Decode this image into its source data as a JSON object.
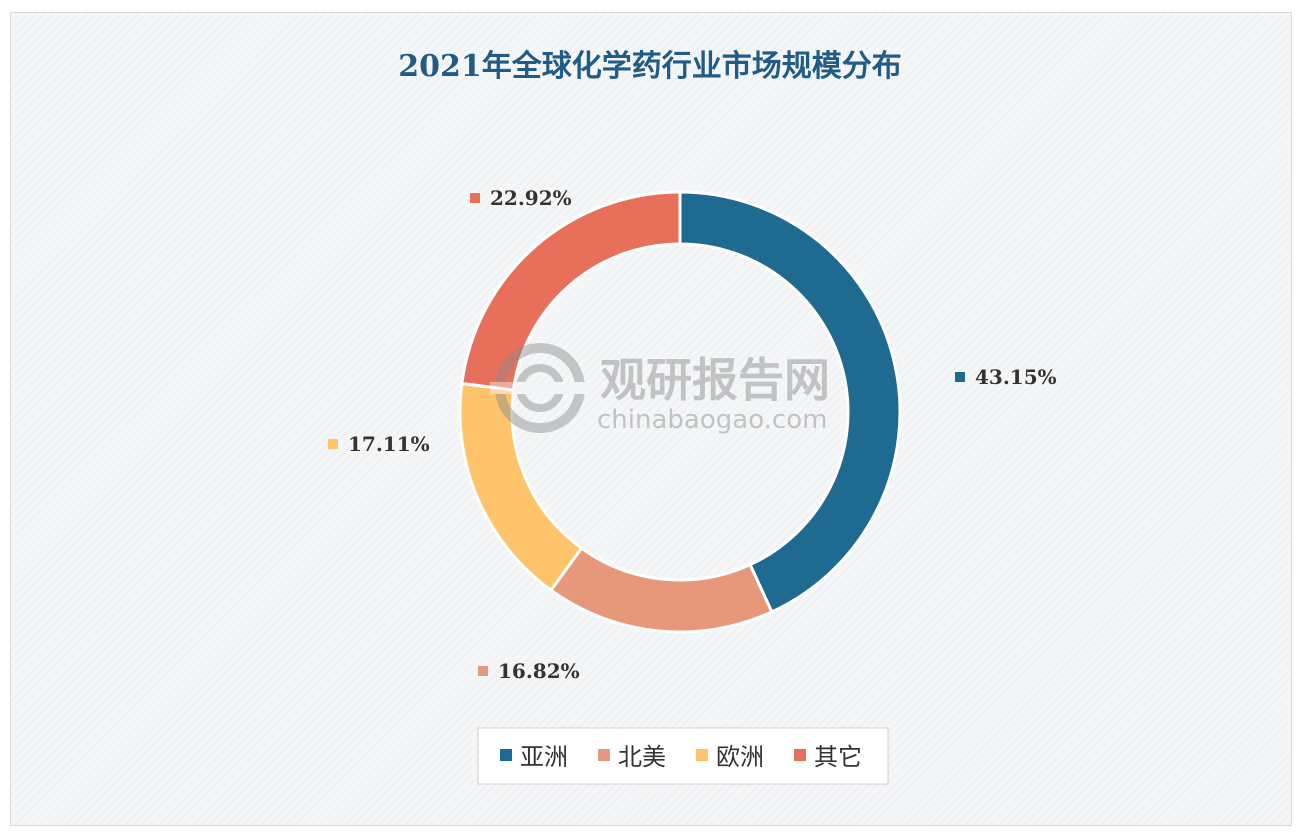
{
  "chart_data": {
    "type": "pie",
    "title": "2021年全球化学药行业市场规模分布",
    "categories": [
      "亚洲",
      "北美",
      "欧洲",
      "其它"
    ],
    "values": [
      43.15,
      16.82,
      17.11,
      22.92
    ],
    "value_labels": [
      "43.15%",
      "16.82%",
      "17.11%",
      "22.92%"
    ],
    "colors": [
      "#1f6a90",
      "#e8987a",
      "#ffc46b",
      "#e8705a"
    ],
    "legend_position": "bottom"
  },
  "watermark": {
    "cn": "观研报告网",
    "en": "chinabaogao.com"
  }
}
